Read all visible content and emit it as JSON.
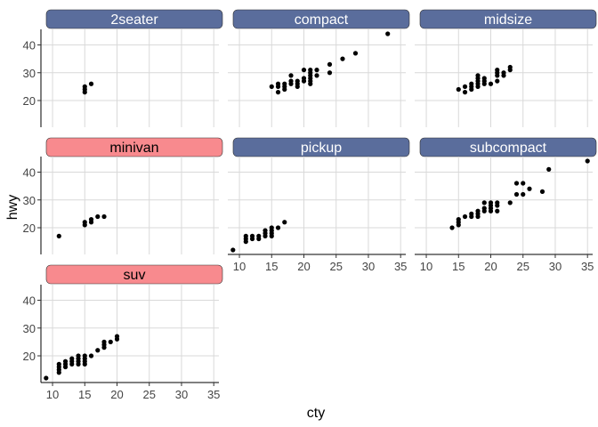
{
  "chart_data": {
    "type": "scatter",
    "xlabel": "cty",
    "ylabel": "hwy",
    "xlim": [
      8.2,
      35.8
    ],
    "ylim": [
      10.4,
      45.6
    ],
    "x_ticks": [
      10,
      15,
      20,
      25,
      30,
      35
    ],
    "y_ticks": [
      20,
      30,
      40
    ],
    "x_tick_labels": [
      "10",
      "15",
      "20",
      "25",
      "30",
      "35"
    ],
    "y_tick_labels": [
      "20",
      "30",
      "40"
    ],
    "grid": true,
    "layout": "facet_wrap 3 columns",
    "colors": {
      "strip_default": "#5a6d9c",
      "strip_highlight": "#f88a8e",
      "strip_text_default": "#ffffff",
      "strip_text_highlight": "#000000",
      "point": "#000000",
      "grid": "#d9d9d9"
    },
    "panels": [
      {
        "label": "2seater",
        "highlight": false,
        "points": [
          [
            15,
            23
          ],
          [
            15,
            24
          ],
          [
            15,
            25
          ],
          [
            16,
            26
          ]
        ]
      },
      {
        "label": "compact",
        "highlight": false,
        "points": [
          [
            15,
            25
          ],
          [
            16,
            23
          ],
          [
            16,
            25
          ],
          [
            16,
            26
          ],
          [
            17,
            24
          ],
          [
            17,
            25
          ],
          [
            17,
            26
          ],
          [
            18,
            26
          ],
          [
            18,
            27
          ],
          [
            18,
            29
          ],
          [
            19,
            25
          ],
          [
            19,
            26
          ],
          [
            19,
            27
          ],
          [
            20,
            27
          ],
          [
            20,
            28
          ],
          [
            20,
            31
          ],
          [
            21,
            26
          ],
          [
            21,
            27
          ],
          [
            21,
            28
          ],
          [
            21,
            29
          ],
          [
            21,
            30
          ],
          [
            21,
            31
          ],
          [
            22,
            29
          ],
          [
            22,
            31
          ],
          [
            24,
            30
          ],
          [
            24,
            33
          ],
          [
            26,
            35
          ],
          [
            28,
            37
          ],
          [
            33,
            44
          ]
        ]
      },
      {
        "label": "midsize",
        "highlight": false,
        "points": [
          [
            15,
            24
          ],
          [
            16,
            23
          ],
          [
            16,
            25
          ],
          [
            17,
            24
          ],
          [
            17,
            25
          ],
          [
            17,
            26
          ],
          [
            18,
            25
          ],
          [
            18,
            26
          ],
          [
            18,
            27
          ],
          [
            18,
            28
          ],
          [
            18,
            29
          ],
          [
            19,
            26
          ],
          [
            19,
            27
          ],
          [
            19,
            28
          ],
          [
            20,
            26
          ],
          [
            21,
            27
          ],
          [
            21,
            29
          ],
          [
            21,
            30
          ],
          [
            21,
            31
          ],
          [
            22,
            29
          ],
          [
            22,
            30
          ],
          [
            23,
            31
          ],
          [
            23,
            32
          ]
        ]
      },
      {
        "label": "minivan",
        "highlight": true,
        "points": [
          [
            11,
            17
          ],
          [
            15,
            21
          ],
          [
            15,
            22
          ],
          [
            16,
            22
          ],
          [
            16,
            23
          ],
          [
            17,
            24
          ],
          [
            18,
            24
          ]
        ]
      },
      {
        "label": "pickup",
        "highlight": false,
        "points": [
          [
            9,
            12
          ],
          [
            11,
            15
          ],
          [
            11,
            16
          ],
          [
            11,
            17
          ],
          [
            12,
            16
          ],
          [
            12,
            17
          ],
          [
            13,
            16
          ],
          [
            13,
            17
          ],
          [
            14,
            17
          ],
          [
            14,
            18
          ],
          [
            14,
            19
          ],
          [
            15,
            17
          ],
          [
            15,
            18
          ],
          [
            15,
            19
          ],
          [
            15,
            20
          ],
          [
            16,
            20
          ],
          [
            17,
            22
          ]
        ]
      },
      {
        "label": "subcompact",
        "highlight": false,
        "points": [
          [
            14,
            20
          ],
          [
            15,
            21
          ],
          [
            15,
            22
          ],
          [
            15,
            23
          ],
          [
            16,
            24
          ],
          [
            17,
            24
          ],
          [
            17,
            25
          ],
          [
            18,
            24
          ],
          [
            18,
            25
          ],
          [
            18,
            26
          ],
          [
            19,
            26
          ],
          [
            19,
            27
          ],
          [
            19,
            29
          ],
          [
            20,
            26
          ],
          [
            20,
            27
          ],
          [
            20,
            28
          ],
          [
            20,
            29
          ],
          [
            21,
            26
          ],
          [
            21,
            28
          ],
          [
            21,
            29
          ],
          [
            23,
            29
          ],
          [
            24,
            32
          ],
          [
            24,
            36
          ],
          [
            25,
            32
          ],
          [
            25,
            36
          ],
          [
            26,
            34
          ],
          [
            28,
            33
          ],
          [
            29,
            41
          ],
          [
            35,
            44
          ]
        ]
      },
      {
        "label": "suv",
        "highlight": true,
        "points": [
          [
            9,
            12
          ],
          [
            11,
            14
          ],
          [
            11,
            15
          ],
          [
            11,
            16
          ],
          [
            11,
            17
          ],
          [
            12,
            16
          ],
          [
            12,
            17
          ],
          [
            12,
            18
          ],
          [
            13,
            17
          ],
          [
            13,
            18
          ],
          [
            13,
            19
          ],
          [
            14,
            17
          ],
          [
            14,
            18
          ],
          [
            14,
            19
          ],
          [
            14,
            20
          ],
          [
            15,
            17
          ],
          [
            15,
            18
          ],
          [
            15,
            19
          ],
          [
            15,
            20
          ],
          [
            16,
            20
          ],
          [
            17,
            22
          ],
          [
            18,
            23
          ],
          [
            18,
            24
          ],
          [
            18,
            25
          ],
          [
            19,
            25
          ],
          [
            20,
            26
          ],
          [
            20,
            27
          ]
        ]
      }
    ]
  }
}
